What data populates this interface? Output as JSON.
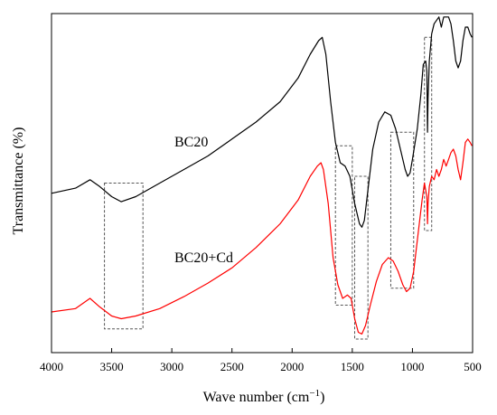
{
  "chart_data": {
    "type": "line",
    "xlabel": "Wave number (cm",
    "xlabel_sup": "−1",
    "xlabel_end": ")",
    "ylabel": "Transmittance (%)",
    "xlim": [
      4000,
      500
    ],
    "x_reversed": true,
    "ylim": [
      0,
      100
    ],
    "y_ticks_shown": false,
    "x_ticks": [
      4000,
      3500,
      3000,
      2500,
      2000,
      1500,
      1000,
      500
    ],
    "x_tick_labels": [
      "4000",
      "3500",
      "3000",
      "2500",
      "2000",
      "1500",
      "1000",
      "500"
    ],
    "grid": false,
    "series": [
      {
        "name": "BC20",
        "color": "#000000",
        "points": [
          [
            4000,
            47
          ],
          [
            3800,
            48.5
          ],
          [
            3680,
            51
          ],
          [
            3600,
            49
          ],
          [
            3500,
            46
          ],
          [
            3420,
            44.5
          ],
          [
            3300,
            46
          ],
          [
            3100,
            50
          ],
          [
            2900,
            54
          ],
          [
            2700,
            58
          ],
          [
            2500,
            63
          ],
          [
            2300,
            68
          ],
          [
            2100,
            74
          ],
          [
            1950,
            81
          ],
          [
            1850,
            88
          ],
          [
            1780,
            92
          ],
          [
            1750,
            93
          ],
          [
            1720,
            88
          ],
          [
            1680,
            74
          ],
          [
            1640,
            62
          ],
          [
            1600,
            56
          ],
          [
            1560,
            55
          ],
          [
            1520,
            52
          ],
          [
            1480,
            44
          ],
          [
            1440,
            38
          ],
          [
            1420,
            37
          ],
          [
            1400,
            39
          ],
          [
            1370,
            48
          ],
          [
            1330,
            60
          ],
          [
            1280,
            68
          ],
          [
            1230,
            71
          ],
          [
            1180,
            70
          ],
          [
            1140,
            66
          ],
          [
            1100,
            60
          ],
          [
            1060,
            54
          ],
          [
            1040,
            52
          ],
          [
            1020,
            53
          ],
          [
            1000,
            57
          ],
          [
            960,
            66
          ],
          [
            930,
            76
          ],
          [
            910,
            85
          ],
          [
            890,
            86
          ],
          [
            880,
            83
          ],
          [
            875,
            65
          ],
          [
            870,
            75
          ],
          [
            860,
            86
          ],
          [
            840,
            94
          ],
          [
            820,
            97
          ],
          [
            780,
            99
          ],
          [
            760,
            96
          ],
          [
            740,
            99
          ],
          [
            700,
            99
          ],
          [
            680,
            97
          ],
          [
            660,
            92
          ],
          [
            640,
            86
          ],
          [
            620,
            84
          ],
          [
            600,
            86
          ],
          [
            580,
            92
          ],
          [
            560,
            96
          ],
          [
            540,
            96
          ],
          [
            520,
            94
          ],
          [
            505,
            93
          ]
        ]
      },
      {
        "name": "BC20+Cd",
        "color": "#ff0000",
        "points": [
          [
            4000,
            12
          ],
          [
            3800,
            13
          ],
          [
            3680,
            16
          ],
          [
            3600,
            13.5
          ],
          [
            3500,
            10.8
          ],
          [
            3420,
            10
          ],
          [
            3300,
            10.8
          ],
          [
            3100,
            13
          ],
          [
            2900,
            16.5
          ],
          [
            2700,
            20.5
          ],
          [
            2500,
            25
          ],
          [
            2300,
            31
          ],
          [
            2100,
            38
          ],
          [
            1950,
            45
          ],
          [
            1850,
            52
          ],
          [
            1790,
            55
          ],
          [
            1760,
            56
          ],
          [
            1740,
            54
          ],
          [
            1700,
            44
          ],
          [
            1660,
            28
          ],
          [
            1620,
            20
          ],
          [
            1580,
            16
          ],
          [
            1540,
            17
          ],
          [
            1510,
            16
          ],
          [
            1480,
            10
          ],
          [
            1450,
            6
          ],
          [
            1420,
            5.5
          ],
          [
            1390,
            8
          ],
          [
            1350,
            14
          ],
          [
            1300,
            21
          ],
          [
            1250,
            26
          ],
          [
            1200,
            28
          ],
          [
            1160,
            27
          ],
          [
            1120,
            24
          ],
          [
            1080,
            20
          ],
          [
            1050,
            18
          ],
          [
            1020,
            19
          ],
          [
            990,
            24
          ],
          [
            950,
            36
          ],
          [
            920,
            45
          ],
          [
            900,
            50
          ],
          [
            880,
            46
          ],
          [
            875,
            38
          ],
          [
            870,
            44
          ],
          [
            860,
            49
          ],
          [
            840,
            52
          ],
          [
            820,
            51
          ],
          [
            800,
            54
          ],
          [
            780,
            52
          ],
          [
            760,
            54
          ],
          [
            740,
            57
          ],
          [
            720,
            55
          ],
          [
            700,
            57
          ],
          [
            680,
            59
          ],
          [
            660,
            60
          ],
          [
            640,
            58
          ],
          [
            620,
            54
          ],
          [
            600,
            51
          ],
          [
            580,
            56
          ],
          [
            560,
            62
          ],
          [
            540,
            63
          ],
          [
            520,
            62
          ],
          [
            505,
            61
          ]
        ]
      }
    ],
    "annotations": [
      {
        "type": "dashed-box",
        "x": [
          3560,
          3240
        ],
        "y": [
          7,
          50
        ]
      },
      {
        "type": "dashed-box",
        "x": [
          1640,
          1500
        ],
        "y": [
          14,
          61
        ]
      },
      {
        "type": "dashed-box",
        "x": [
          1480,
          1370
        ],
        "y": [
          4,
          52
        ]
      },
      {
        "type": "dashed-box",
        "x": [
          1180,
          990
        ],
        "y": [
          19,
          65
        ]
      },
      {
        "type": "dashed-box",
        "x": [
          900,
          840
        ],
        "y": [
          36,
          93
        ]
      }
    ]
  },
  "labels": {
    "bc20": "BC20",
    "bc20_cd": "BC20+Cd"
  }
}
